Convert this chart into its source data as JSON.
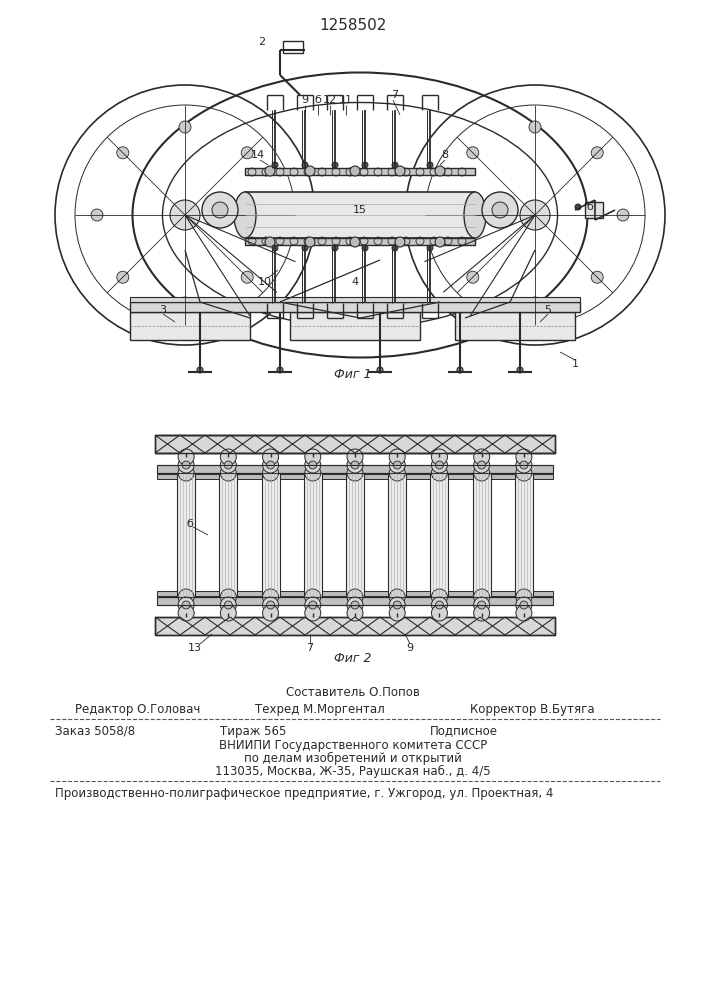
{
  "patent_number": "1258502",
  "fig1_caption": "Фиг 1",
  "fig2_caption": "Фиг 2",
  "bg_color": "#ffffff",
  "line_color": "#2a2a2a",
  "footer_sestavitel": "Составитель О.Попов",
  "footer_line1_left": "Редактор О.Головач",
  "footer_line1_center": "Техред М.Моргентал",
  "footer_line1_right": "Корректор В.Бутяга",
  "footer_zakaz": "Заказ 5058/8",
  "footer_tirazh": "Тираж 565",
  "footer_podpisnoe": "Подписное",
  "footer_vniipи": "ВНИИПИ Государственного комитета СССР",
  "footer_po_delam": "по делам изобретений и открытий",
  "footer_address": "113035, Москва, Ж-35, Раушская наб., д. 4/5",
  "footer_ughorod": "Производственно-полиграфическое предприятие, г. Ужгород, ул. Проектная, 4"
}
